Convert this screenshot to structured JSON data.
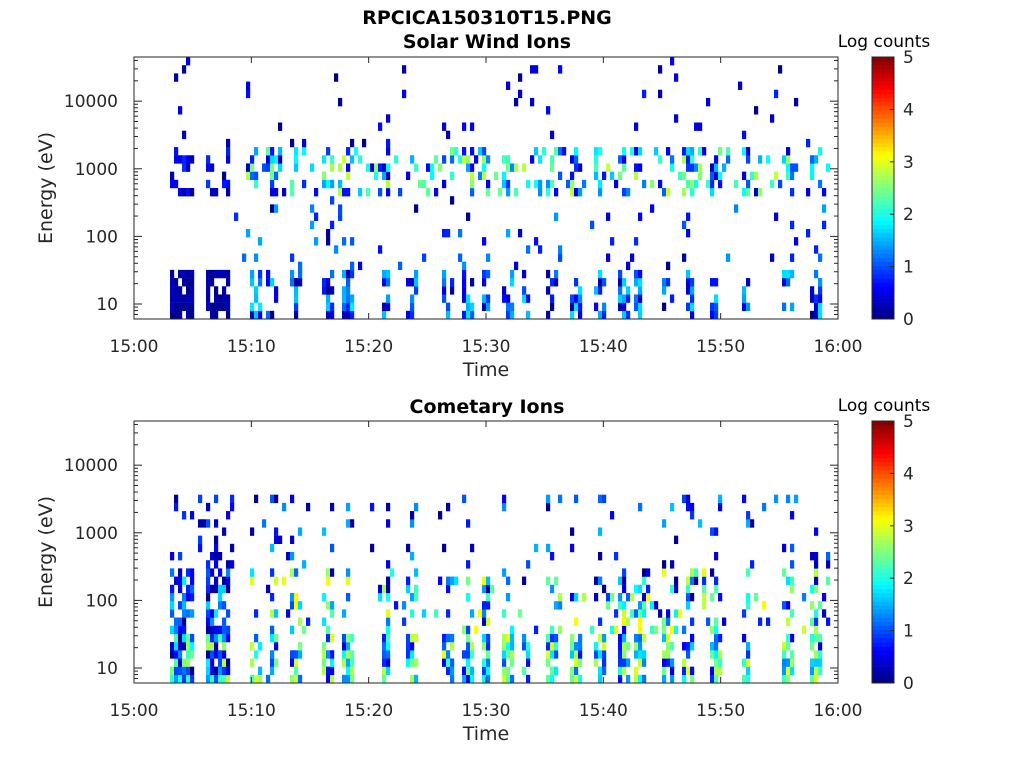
{
  "figure": {
    "title": "RPCICA150310T15.PNG"
  },
  "chart_data": [
    {
      "type": "heatmap",
      "title": "Solar Wind Ions",
      "xlabel": "Time",
      "ylabel": "Energy (eV)",
      "x_ticks": [
        "15:00",
        "15:10",
        "15:20",
        "15:30",
        "15:40",
        "15:50",
        "16:00"
      ],
      "x_range_minutes": [
        0,
        60
      ],
      "y_scale": "log",
      "y_ticks": [
        "10",
        "100",
        "1000",
        "10000"
      ],
      "y_range": [
        6,
        45000
      ],
      "colorbar": {
        "label": "Log counts",
        "ticks": [
          "0",
          "1",
          "2",
          "3",
          "4",
          "5"
        ],
        "range": [
          0,
          5
        ],
        "colormap": "jet"
      },
      "features": [
        {
          "time_min": [
            3.2,
            8.5
          ],
          "energy_eV": [
            6,
            30
          ],
          "log_counts": 0.3,
          "desc": "dense low-energy columns"
        },
        {
          "time_min": [
            9.5,
            59
          ],
          "energy_eV": [
            6,
            30
          ],
          "log_counts": 0.5,
          "desc": "intermittent low-energy bursts"
        },
        {
          "time_min": [
            9.5,
            59
          ],
          "energy_eV": [
            400,
            2000
          ],
          "log_counts": 2.0,
          "desc": "solar wind band near 700 eV"
        }
      ]
    },
    {
      "type": "heatmap",
      "title": "Cometary Ions",
      "xlabel": "Time",
      "ylabel": "Energy (eV)",
      "x_ticks": [
        "15:00",
        "15:10",
        "15:20",
        "15:30",
        "15:40",
        "15:50",
        "16:00"
      ],
      "x_range_minutes": [
        0,
        60
      ],
      "y_scale": "log",
      "y_ticks": [
        "10",
        "100",
        "1000",
        "10000"
      ],
      "y_range": [
        6,
        45000
      ],
      "colorbar": {
        "label": "Log counts",
        "ticks": [
          "0",
          "1",
          "2",
          "3",
          "4",
          "5"
        ],
        "range": [
          0,
          5
        ],
        "colormap": "jet"
      },
      "features": [
        {
          "time_min": [
            3.2,
            8.5
          ],
          "energy_eV": [
            6,
            300
          ],
          "log_counts": 1.5,
          "desc": "dense low-energy columns"
        },
        {
          "time_min": [
            9.5,
            59
          ],
          "energy_eV": [
            6,
            300
          ],
          "log_counts": 2.5,
          "desc": "periodic cometary ion bursts"
        },
        {
          "time_min": [
            9.5,
            59
          ],
          "energy_eV": [
            500,
            3000
          ],
          "log_counts": 1.0,
          "desc": "sparse high-energy counts"
        }
      ]
    }
  ]
}
